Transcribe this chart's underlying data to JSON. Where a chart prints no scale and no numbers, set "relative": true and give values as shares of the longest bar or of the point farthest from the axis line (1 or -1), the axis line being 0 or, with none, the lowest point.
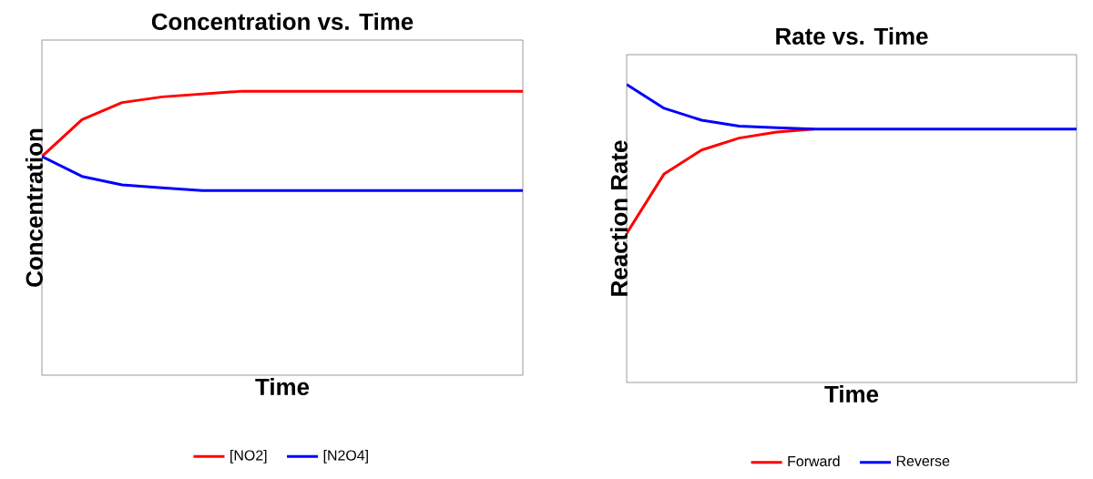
{
  "chart_data": [
    {
      "type": "line",
      "title": "Concentration vs. Time",
      "xlabel": "Time",
      "ylabel": "Concentration",
      "relative": true,
      "legend": "bottom",
      "marker": "none",
      "line_style": "solid",
      "categories": [
        null,
        null,
        null,
        null,
        null,
        null,
        null,
        null,
        null,
        null,
        null,
        null,
        null
      ],
      "series": [
        {
          "name": "[NO2]",
          "color": "#ff0000",
          "values": [
            0.77,
            0.9,
            0.96,
            0.98,
            0.99,
            1,
            1,
            1,
            1,
            1,
            1,
            1,
            1
          ]
        },
        {
          "name": "[N2O4]",
          "color": "#0000ff",
          "values": [
            0.77,
            0.7,
            0.67,
            0.66,
            0.65,
            0.65,
            0.65,
            0.65,
            0.65,
            0.65,
            0.65,
            0.65,
            0.65
          ]
        }
      ]
    },
    {
      "type": "line",
      "title": "Rate vs. Time",
      "xlabel": "Time",
      "ylabel": "Reaction Rate",
      "relative": true,
      "legend": "bottom",
      "marker": "none",
      "line_style": "solid",
      "categories": [
        null,
        null,
        null,
        null,
        null,
        null,
        null,
        null,
        null,
        null,
        null,
        null,
        null
      ],
      "series": [
        {
          "name": "Forward",
          "color": "#ff0000",
          "values": [
            0.5,
            0.7,
            0.78,
            0.82,
            0.84,
            0.85,
            null,
            null,
            null,
            null,
            null,
            null,
            null
          ]
        },
        {
          "name": "Reverse",
          "color": "#0000ff",
          "values": [
            1,
            0.92,
            0.88,
            0.86,
            0.855,
            0.85,
            0.85,
            0.85,
            0.85,
            0.85,
            0.85,
            0.85,
            0.85
          ]
        }
      ]
    }
  ]
}
